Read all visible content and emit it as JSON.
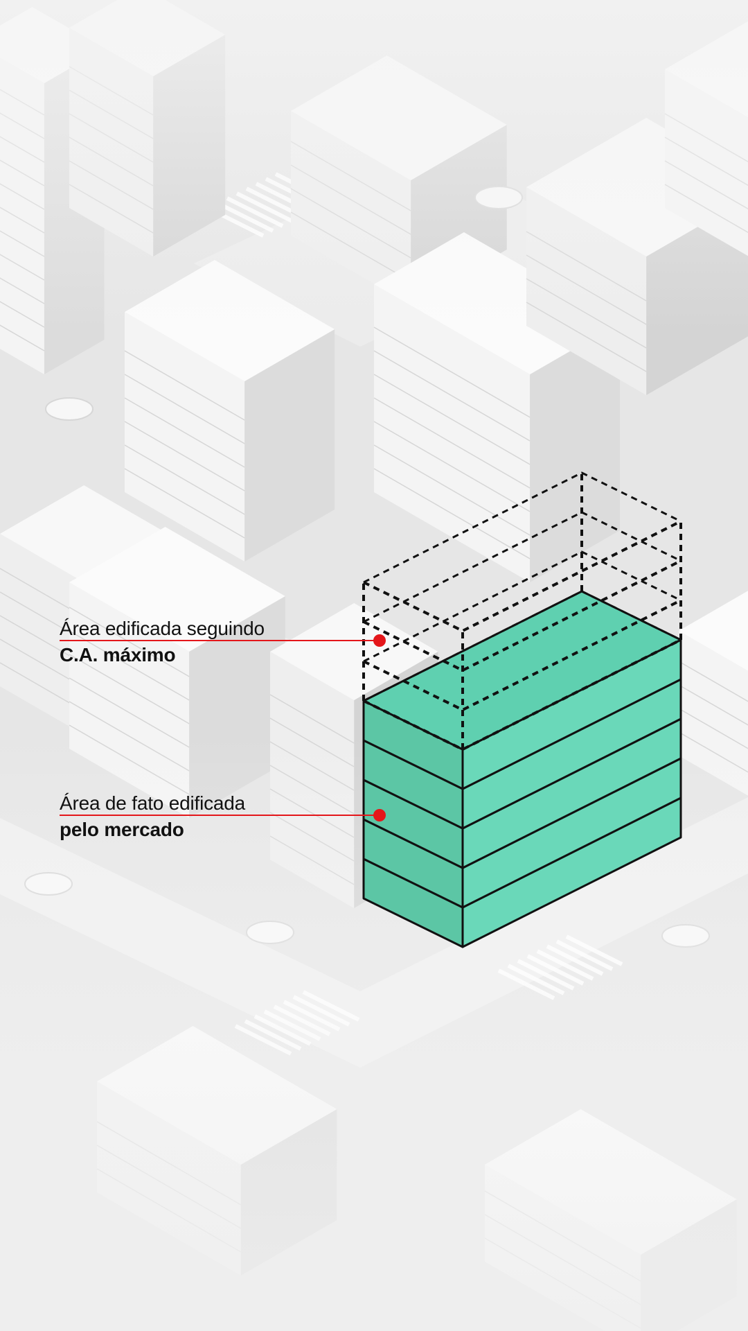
{
  "annotations": [
    {
      "id": "max",
      "line1": "Área edificada seguindo",
      "line2": "C.A. máximo"
    },
    {
      "id": "actual",
      "line1": "Área de fato edificada",
      "line2": "pelo mercado"
    }
  ],
  "building": {
    "built_floors": 5,
    "potential_floors": 3
  },
  "colors": {
    "built_top": "#5fd0b0",
    "built_left": "#5cc6a5",
    "built_right": "#6ad8b9",
    "outline": "#111111",
    "pointer": "#e4161a",
    "city": "#f3f3f3"
  }
}
